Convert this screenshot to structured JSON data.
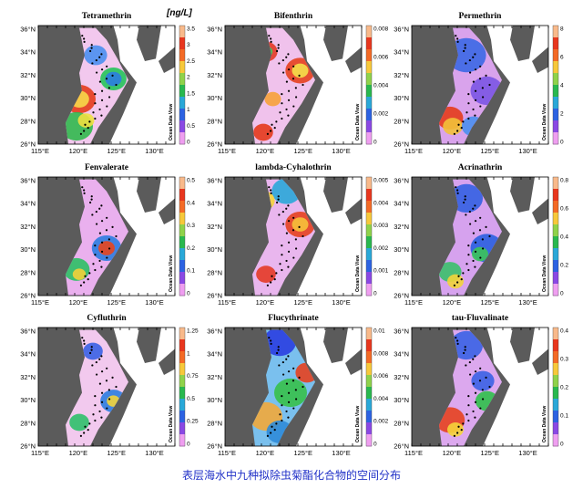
{
  "unit_label": "[ng/L]",
  "watermark": "Ocean Data View",
  "lat_ticks": [
    "36°N",
    "34°N",
    "32°N",
    "30°N",
    "28°N",
    "26°N"
  ],
  "lon_ticks": [
    "115°E",
    "120°E",
    "125°E",
    "130°E"
  ],
  "caption": "表层海水中九种拟除虫菊酯化合物的空间分布",
  "panels": [
    {
      "title": "Tetramethrin",
      "scale": [
        "3.5",
        "3",
        "2.5",
        "2",
        "1.5",
        "1",
        "0.5",
        "0"
      ],
      "bg": "#f2c8ee",
      "blobs": [
        [
          0.3,
          0.62,
          0.1,
          "#e43b1b"
        ],
        [
          0.3,
          0.62,
          0.06,
          "#f6d84a"
        ],
        [
          0.55,
          0.45,
          0.08,
          "#25c45a"
        ],
        [
          0.55,
          0.45,
          0.05,
          "#2c7de0"
        ],
        [
          0.42,
          0.25,
          0.07,
          "#4a8ff0"
        ],
        [
          0.28,
          0.85,
          0.1,
          "#31b84d"
        ],
        [
          0.35,
          0.8,
          0.05,
          "#f0e040"
        ]
      ]
    },
    {
      "title": "Bifenthrin",
      "scale": [
        "0.008",
        "0.006",
        "0.004",
        "0.002",
        "0"
      ],
      "bg": "#f0c2ec",
      "blobs": [
        [
          0.55,
          0.38,
          0.09,
          "#e5411f"
        ],
        [
          0.55,
          0.38,
          0.05,
          "#f4e04a"
        ],
        [
          0.3,
          0.22,
          0.07,
          "#e23a26"
        ],
        [
          0.3,
          0.22,
          0.04,
          "#3fc35a"
        ],
        [
          0.35,
          0.62,
          0.05,
          "#f6a23a"
        ],
        [
          0.28,
          0.9,
          0.06,
          "#e43a1c"
        ]
      ]
    },
    {
      "title": "Permethrin",
      "scale": [
        "8",
        "6",
        "4",
        "2",
        "0"
      ],
      "bg": "#d9a3ec",
      "blobs": [
        [
          0.4,
          0.25,
          0.12,
          "#3b68e6"
        ],
        [
          0.55,
          0.55,
          0.1,
          "#7b55e4"
        ],
        [
          0.28,
          0.78,
          0.08,
          "#e43b1b"
        ],
        [
          0.3,
          0.85,
          0.06,
          "#f2c13a"
        ],
        [
          0.45,
          0.85,
          0.07,
          "#4a8ff0"
        ]
      ]
    },
    {
      "title": "Fenvalerate",
      "scale": [
        "0.5",
        "0.4",
        "0.3",
        "0.2",
        "0.1",
        "0"
      ],
      "bg": "#eab0ee",
      "blobs": [
        [
          0.5,
          0.6,
          0.09,
          "#2c7de0"
        ],
        [
          0.5,
          0.6,
          0.05,
          "#e8451e"
        ],
        [
          0.28,
          0.78,
          0.08,
          "#2cc064"
        ],
        [
          0.3,
          0.82,
          0.04,
          "#f2d03a"
        ]
      ]
    },
    {
      "title": "lambda-Cyhalothrin",
      "scale": [
        "0.005",
        "0.004",
        "0.003",
        "0.002",
        "0.001",
        "0"
      ],
      "bg": "#e9b6ee",
      "blobs": [
        [
          0.55,
          0.4,
          0.09,
          "#e5411f"
        ],
        [
          0.55,
          0.4,
          0.05,
          "#f6c23a"
        ],
        [
          0.45,
          0.12,
          0.09,
          "#2aa7d8"
        ],
        [
          0.28,
          0.2,
          0.07,
          "#f4d43a"
        ],
        [
          0.3,
          0.82,
          0.06,
          "#e43a26"
        ]
      ]
    },
    {
      "title": "Acrinathrin",
      "scale": [
        "0.8",
        "0.6",
        "0.4",
        "0.2",
        "0"
      ],
      "bg": "#d6a2ee",
      "blobs": [
        [
          0.4,
          0.18,
          0.1,
          "#3461e2"
        ],
        [
          0.55,
          0.6,
          0.1,
          "#2a5fe0"
        ],
        [
          0.5,
          0.65,
          0.05,
          "#3cc45a"
        ],
        [
          0.28,
          0.8,
          0.07,
          "#3bc06a"
        ],
        [
          0.32,
          0.88,
          0.05,
          "#f2d43a"
        ]
      ]
    },
    {
      "title": "Cyfluthrin",
      "scale": [
        "1.25",
        "1",
        "0.75",
        "0.5",
        "0.25",
        "0"
      ],
      "bg": "#f2c9ee",
      "blobs": [
        [
          0.55,
          0.62,
          0.08,
          "#2c7de0"
        ],
        [
          0.55,
          0.62,
          0.04,
          "#f4d43a"
        ],
        [
          0.4,
          0.2,
          0.06,
          "#3a62e4"
        ],
        [
          0.3,
          0.8,
          0.06,
          "#2fc06a"
        ]
      ]
    },
    {
      "title": "Flucythrinate",
      "scale": [
        "0.01",
        "0.008",
        "0.006",
        "0.004",
        "0.002",
        "0"
      ],
      "bg": "#7ac0ee",
      "blobs": [
        [
          0.4,
          0.12,
          0.1,
          "#2a3ee0"
        ],
        [
          0.6,
          0.38,
          0.07,
          "#e5411f"
        ],
        [
          0.48,
          0.55,
          0.1,
          "#37c04a"
        ],
        [
          0.3,
          0.75,
          0.1,
          "#f2a83a"
        ],
        [
          0.4,
          0.88,
          0.08,
          "#2f8bd8"
        ]
      ]
    },
    {
      "title": "tau-Fluvalinate",
      "scale": [
        "0.4",
        "0.3",
        "0.2",
        "0.1",
        "0"
      ],
      "bg": "#dca8ee",
      "blobs": [
        [
          0.4,
          0.15,
          0.1,
          "#3a62e4"
        ],
        [
          0.52,
          0.45,
          0.07,
          "#3b62e4"
        ],
        [
          0.55,
          0.62,
          0.07,
          "#2fc04a"
        ],
        [
          0.28,
          0.78,
          0.09,
          "#e5411f"
        ],
        [
          0.32,
          0.86,
          0.05,
          "#f4d43a"
        ]
      ]
    }
  ]
}
